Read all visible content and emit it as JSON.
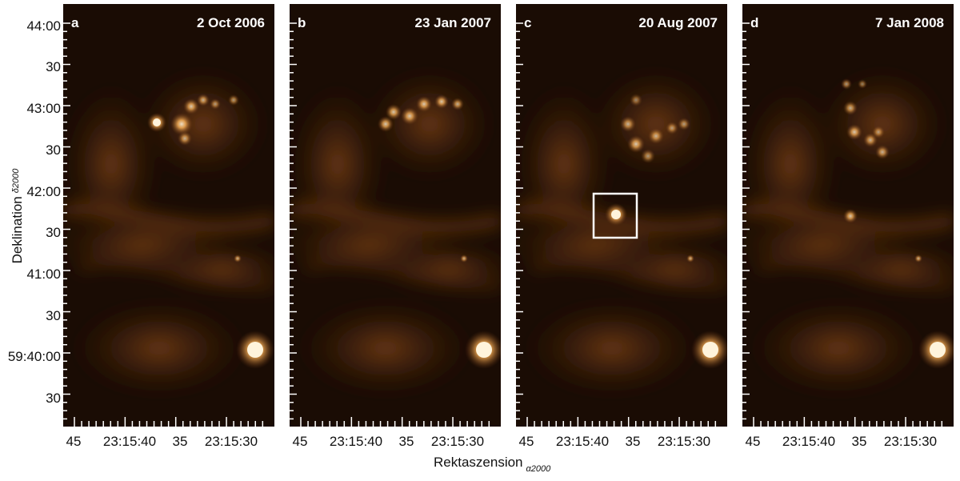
{
  "panels": [
    {
      "letter": "a",
      "date": "2 Oct 2006"
    },
    {
      "letter": "b",
      "date": "23 Jan 2007"
    },
    {
      "letter": "c",
      "date": "20 Aug 2007"
    },
    {
      "letter": "d",
      "date": "7 Jan 2008"
    }
  ],
  "y_ticks": [
    "44:00",
    "30",
    "43:00",
    "30",
    "42:00",
    "30",
    "41:00",
    "30",
    "59:40:00",
    "30"
  ],
  "x_ticks": [
    "45",
    "23:15:40",
    "35",
    "23:15:30"
  ],
  "x_axis": {
    "label": "Rektaszension",
    "sub": "α2000"
  },
  "y_axis": {
    "label": "Deklination",
    "sub": "δ2000"
  },
  "colors": {
    "glow": "#ffb55a",
    "core": "#fff4dc",
    "background": "#1a0c04"
  }
}
